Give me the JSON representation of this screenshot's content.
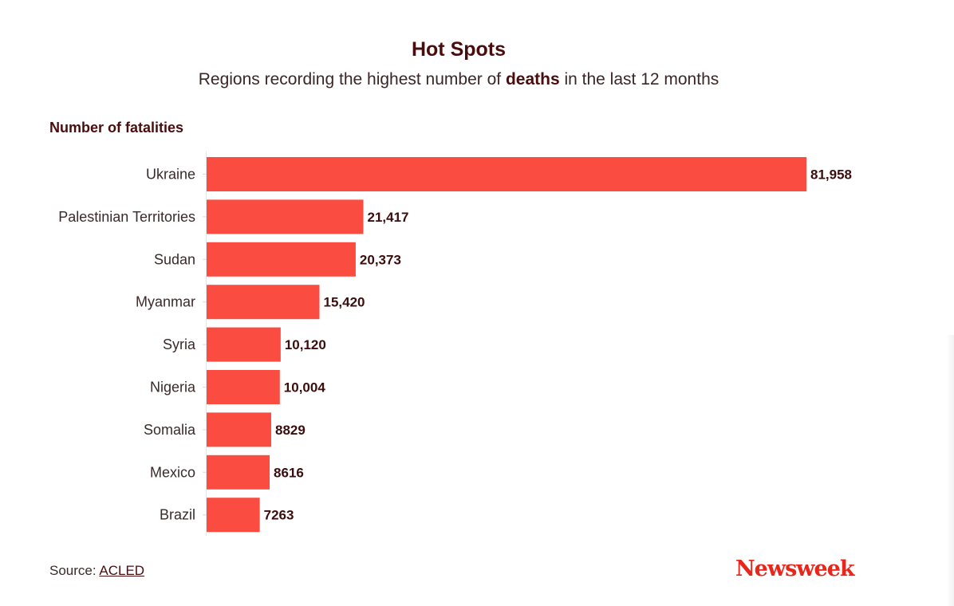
{
  "chart_data": {
    "type": "bar",
    "orientation": "horizontal",
    "title": "Hot Spots",
    "subtitle": {
      "before": "Regions recording the highest number of ",
      "emphasis": "deaths",
      "after": " in the last 12 months"
    },
    "xlabel": "Number of fatalities",
    "ylabel": "",
    "categories": [
      "Ukraine",
      "Palestinian Territories",
      "Sudan",
      "Myanmar",
      "Syria",
      "Nigeria",
      "Somalia",
      "Mexico",
      "Brazil"
    ],
    "values": [
      81958,
      21417,
      20373,
      15420,
      10120,
      10004,
      8829,
      8616,
      7263
    ],
    "value_labels": [
      "81,958",
      "21,417",
      "20,373",
      "15,420",
      "10,120",
      "10,004",
      "8829",
      "8616",
      "7263"
    ],
    "xlim": [
      0,
      81958
    ],
    "grid": false,
    "legend": "none",
    "bar_color": "#fa4c40"
  },
  "footer": {
    "source_prefix": "Source: ",
    "source_link": "ACLED",
    "brand": "Newsweek",
    "brand_color": "#e8261c"
  }
}
